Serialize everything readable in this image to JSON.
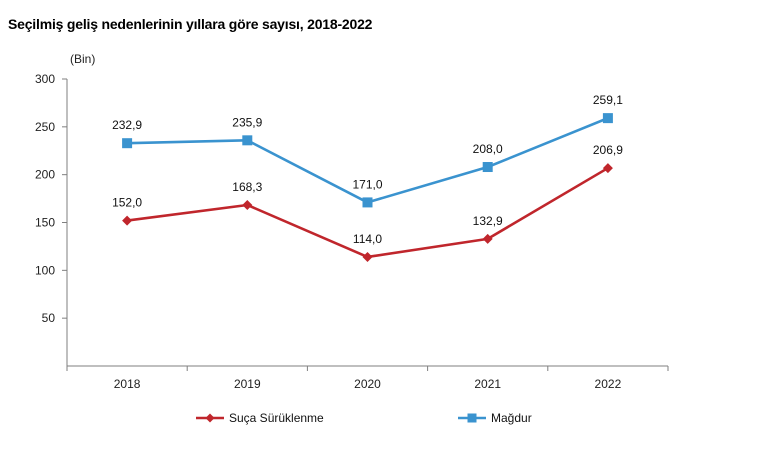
{
  "chart_data": {
    "type": "line",
    "title": "Seçilmiş geliş nedenlerinin yıllara göre sayısı, 2018-2022",
    "ylabel": "(Bin)",
    "xlabel": "",
    "categories": [
      "2018",
      "2019",
      "2020",
      "2021",
      "2022"
    ],
    "ylim": [
      0,
      300
    ],
    "yticks": [
      50,
      100,
      150,
      200,
      250,
      300
    ],
    "grid": false,
    "legend_position": "bottom",
    "series": [
      {
        "name": "Suça Sürüklenme",
        "color": "#c0262c",
        "marker": "diamond",
        "values": [
          152.0,
          168.3,
          114.0,
          132.9,
          206.9
        ],
        "labels": [
          "152,0",
          "168,3",
          "114,0",
          "132,9",
          "206,9"
        ]
      },
      {
        "name": "Mağdur",
        "color": "#3a93cf",
        "marker": "square",
        "values": [
          232.9,
          235.9,
          171.0,
          208.0,
          259.1
        ],
        "labels": [
          "232,9",
          "235,9",
          "171,0",
          "208,0",
          "259,1"
        ]
      }
    ]
  }
}
